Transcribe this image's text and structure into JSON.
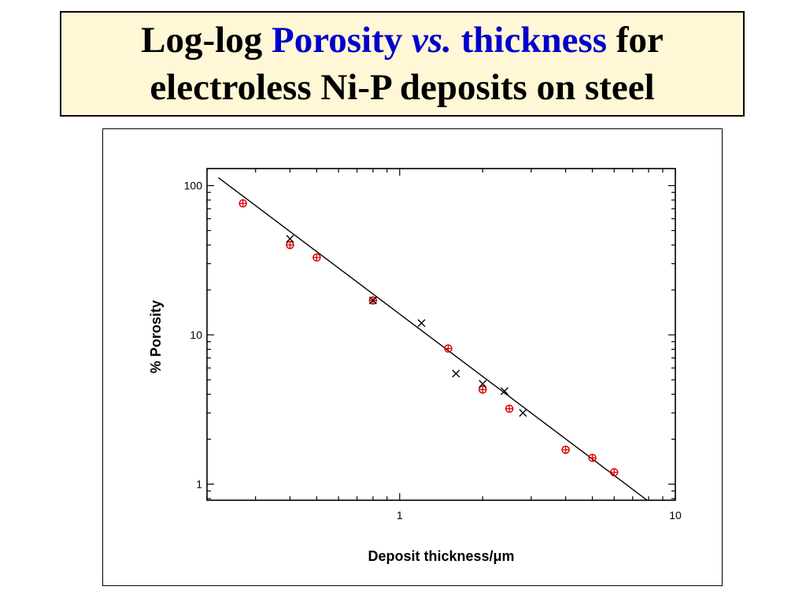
{
  "title": {
    "line1": {
      "part1": "Log-log ",
      "part2": "Porosity ",
      "part3": "vs.",
      "part4": " thickness",
      "part5": " for"
    },
    "line2": "electroless Ni-P deposits on steel",
    "highlight_color": "#0000cc",
    "background_color": "#fff7d6"
  },
  "chart_data": {
    "type": "scatter",
    "xlabel": "Deposit thickness/μm",
    "ylabel": "% Porosity",
    "x_scale": "log",
    "y_scale": "log",
    "xlim": [
      0.2,
      10
    ],
    "ylim": [
      0.78,
      130
    ],
    "x_ticks": [
      {
        "value": 1,
        "label": "1"
      },
      {
        "value": 10,
        "label": "10"
      }
    ],
    "y_ticks": [
      {
        "value": 1,
        "label": "1"
      },
      {
        "value": 10,
        "label": "10"
      },
      {
        "value": 100,
        "label": "100"
      }
    ],
    "grid": false,
    "series": [
      {
        "marker": "circled-plus",
        "color": "#dd0000",
        "x": [
          0.27,
          0.4,
          0.5,
          0.8,
          1.5,
          2.0,
          2.5,
          4.0,
          5.0,
          6.0
        ],
        "y": [
          76,
          40,
          33,
          17,
          8.1,
          4.3,
          3.2,
          1.7,
          1.5,
          1.2
        ]
      },
      {
        "marker": "x",
        "color": "#000000",
        "x": [
          0.4,
          0.8,
          1.2,
          1.6,
          2.0,
          2.4,
          2.8
        ],
        "y": [
          44,
          17,
          12,
          5.5,
          4.7,
          4.2,
          3.0
        ]
      }
    ],
    "fit_line": {
      "color": "#000000",
      "x": [
        0.22,
        7.9
      ],
      "y": [
        113,
        0.78
      ]
    }
  }
}
